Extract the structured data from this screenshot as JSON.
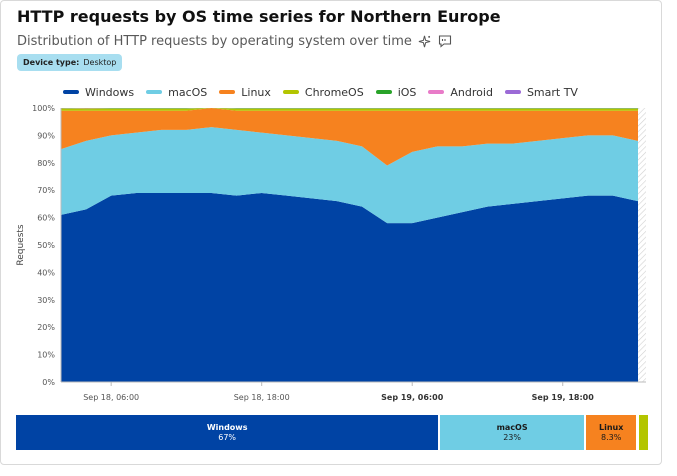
{
  "header": {
    "title": "HTTP requests by OS time series for Northern Europe",
    "subtitle": "Distribution of HTTP requests by operating system over time",
    "sparkle_icon": "sparkle-icon",
    "comment_icon": "comment-icon"
  },
  "filter": {
    "key": "Device type:",
    "value": "Desktop"
  },
  "chart_data": {
    "type": "area",
    "stacked": true,
    "ylabel": "Requests",
    "ylim": [
      0,
      100
    ],
    "y_unit": "%",
    "y_ticks": [
      "0%",
      "10%",
      "20%",
      "30%",
      "40%",
      "50%",
      "60%",
      "70%",
      "80%",
      "90%",
      "100%"
    ],
    "x_ticks": [
      {
        "label": "Sep 18, 06:00",
        "bold": false
      },
      {
        "label": "Sep 18, 18:00",
        "bold": false
      },
      {
        "label": "Sep 19, 06:00",
        "bold": true
      },
      {
        "label": "Sep 19, 18:00",
        "bold": true
      }
    ],
    "x": [
      "Sep 18, 02:00",
      "Sep 18, 04:00",
      "Sep 18, 06:00",
      "Sep 18, 08:00",
      "Sep 18, 10:00",
      "Sep 18, 12:00",
      "Sep 18, 14:00",
      "Sep 18, 16:00",
      "Sep 18, 18:00",
      "Sep 18, 20:00",
      "Sep 18, 22:00",
      "Sep 19, 00:00",
      "Sep 19, 02:00",
      "Sep 19, 04:00",
      "Sep 19, 06:00",
      "Sep 19, 08:00",
      "Sep 19, 10:00",
      "Sep 19, 12:00",
      "Sep 19, 14:00",
      "Sep 19, 16:00",
      "Sep 19, 18:00",
      "Sep 19, 20:00",
      "Sep 19, 22:00",
      "Sep 20, 00:00"
    ],
    "legend_position": "top-left",
    "series": [
      {
        "name": "Windows",
        "color": "#0043a4",
        "values": [
          61,
          63,
          68,
          69,
          69,
          69,
          69,
          68,
          69,
          68,
          67,
          66,
          64,
          58,
          58,
          60,
          62,
          64,
          65,
          66,
          67,
          68,
          68,
          66
        ]
      },
      {
        "name": "macOS",
        "color": "#6fcde4",
        "values": [
          24,
          25,
          22,
          22,
          23,
          23,
          24,
          24,
          22,
          22,
          22,
          22,
          22,
          21,
          26,
          26,
          24,
          23,
          22,
          22,
          22,
          22,
          22,
          22
        ]
      },
      {
        "name": "Linux",
        "color": "#f6821f",
        "values": [
          14,
          11,
          9,
          8,
          7,
          7,
          7,
          7,
          8,
          9,
          10,
          11,
          13,
          20,
          15,
          13,
          13,
          12,
          12,
          11,
          10,
          9,
          9,
          11
        ]
      },
      {
        "name": "ChromeOS",
        "color": "#b3c500",
        "values": [
          0.8,
          0.6,
          0.7,
          0.7,
          0.7,
          0.7,
          0.7,
          0.7,
          0.7,
          0.7,
          0.7,
          0.7,
          0.7,
          0.7,
          0.7,
          0.7,
          0.7,
          0.7,
          0.7,
          0.7,
          0.7,
          0.7,
          0.7,
          0.7
        ]
      },
      {
        "name": "iOS",
        "color": "#29a329",
        "values": [
          0.1,
          0.1,
          0.1,
          0.1,
          0.1,
          0.1,
          0.1,
          0.1,
          0.1,
          0.1,
          0.1,
          0.1,
          0.1,
          0.1,
          0.1,
          0.1,
          0.1,
          0.1,
          0.1,
          0.1,
          0.1,
          0.1,
          0.1,
          0.1
        ]
      },
      {
        "name": "Android",
        "color": "#e87bc8",
        "values": [
          0.05,
          0.05,
          0.05,
          0.05,
          0.05,
          0.05,
          0.05,
          0.05,
          0.05,
          0.05,
          0.05,
          0.05,
          0.05,
          0.05,
          0.05,
          0.05,
          0.05,
          0.05,
          0.05,
          0.05,
          0.05,
          0.05,
          0.05,
          0.05
        ]
      },
      {
        "name": "Smart TV",
        "color": "#9b6ad6",
        "values": [
          0.05,
          0.05,
          0.05,
          0.05,
          0.05,
          0.05,
          0.05,
          0.05,
          0.05,
          0.05,
          0.05,
          0.05,
          0.05,
          0.05,
          0.05,
          0.05,
          0.05,
          0.05,
          0.05,
          0.05,
          0.05,
          0.05,
          0.05,
          0.05
        ]
      }
    ]
  },
  "summary": [
    {
      "name": "Windows",
      "pct": "67%",
      "share": 67,
      "color": "#0043a4",
      "style": "dark"
    },
    {
      "name": "macOS",
      "pct": "23%",
      "share": 23,
      "color": "#6fcde4",
      "style": "light"
    },
    {
      "name": "Linux",
      "pct": "8.3%",
      "share": 8.3,
      "color": "#f6821f",
      "style": "light"
    },
    {
      "name": "",
      "pct": "",
      "share": 1.5,
      "color": "#b3c500",
      "style": "light"
    }
  ]
}
